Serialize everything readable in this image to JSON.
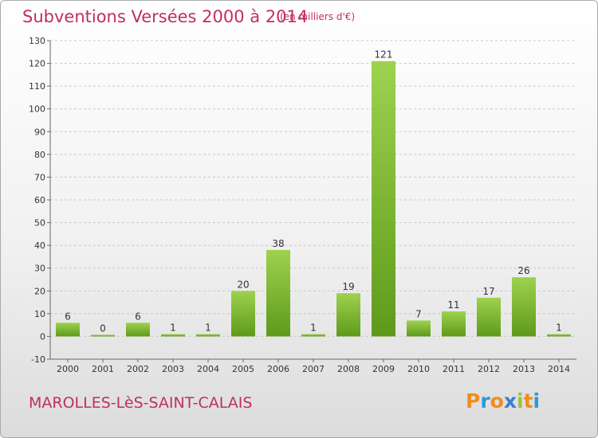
{
  "title": "Subventions Versées 2000 à 2014",
  "unit": "(en milliers d'€)",
  "commune": "MAROLLES-LèS-SAINT-CALAIS",
  "logo": {
    "text": "Proxiti",
    "letters": [
      "P",
      "r",
      "o",
      "x",
      "i",
      "t",
      "i"
    ],
    "colors": [
      "#f28c1e",
      "#2a9ad6",
      "#f28c1e",
      "#3a7fd0",
      "#9ac43c",
      "#f28c1e",
      "#2a9ad6"
    ]
  },
  "colors": {
    "bar_light": "#9ed24f",
    "bar_dark": "#5e9a1a",
    "title": "#c0305a",
    "grid": "#c8c8c8"
  },
  "chart_data": {
    "type": "bar",
    "title": "Subventions Versées 2000 à 2014",
    "subtitle": "(en milliers d'€)",
    "xlabel": "",
    "ylabel": "",
    "categories": [
      "2000",
      "2001",
      "2002",
      "2003",
      "2004",
      "2005",
      "2006",
      "2007",
      "2008",
      "2009",
      "2010",
      "2011",
      "2012",
      "2013",
      "2014"
    ],
    "values": [
      6,
      0,
      6,
      1,
      1,
      20,
      38,
      1,
      19,
      121,
      7,
      11,
      17,
      26,
      1
    ],
    "ylim": [
      -10,
      130
    ],
    "yticks": [
      -10,
      0,
      10,
      20,
      30,
      40,
      50,
      60,
      70,
      80,
      90,
      100,
      110,
      120,
      130
    ],
    "grid": true
  }
}
